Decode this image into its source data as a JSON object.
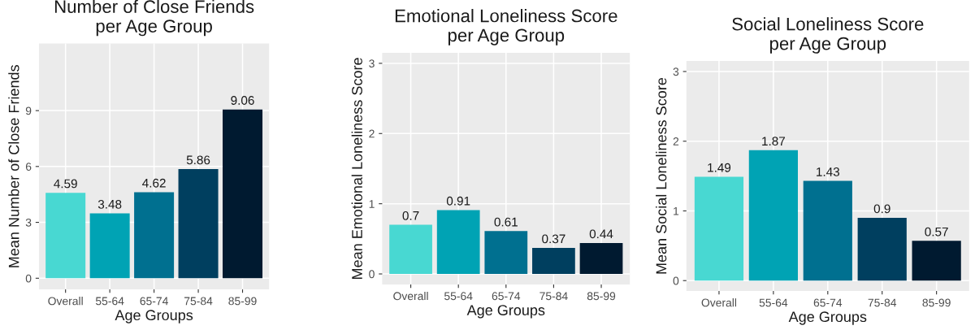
{
  "chart_data": [
    {
      "type": "bar",
      "title": "Number of Close Friends\nper Age Group",
      "xlabel": "Age Groups",
      "ylabel": "Mean Number of Close Friends",
      "categories": [
        "Overall",
        "55-64",
        "65-74",
        "75-84",
        "85-99"
      ],
      "values": [
        4.59,
        3.48,
        4.62,
        5.86,
        9.06
      ],
      "colors": [
        "#48d8d2",
        "#00a3b4",
        "#007090",
        "#003f5f",
        "#001a30"
      ],
      "ylim": [
        -0.6,
        12.6
      ],
      "yticks": [
        0,
        3,
        6,
        9
      ],
      "grid": true,
      "data_labels": true
    },
    {
      "type": "bar",
      "title": "Emotional Loneliness Score\nper Age Group",
      "xlabel": "Age Groups",
      "ylabel": "Mean Emotional Loneliness Score",
      "categories": [
        "Overall",
        "55-64",
        "65-74",
        "75-84",
        "85-99"
      ],
      "values": [
        0.7,
        0.91,
        0.61,
        0.37,
        0.44
      ],
      "colors": [
        "#48d8d2",
        "#00a3b4",
        "#007090",
        "#003f5f",
        "#001a30"
      ],
      "ylim": [
        -0.15,
        3.15
      ],
      "yticks": [
        0,
        1,
        2,
        3
      ],
      "grid": true,
      "data_labels": true
    },
    {
      "type": "bar",
      "title": "Social Loneliness Score\nper Age Group",
      "xlabel": "Age Groups",
      "ylabel": "Mean Social Loneliness Score",
      "categories": [
        "Overall",
        "55-64",
        "65-74",
        "75-84",
        "85-99"
      ],
      "values": [
        1.49,
        1.87,
        1.43,
        0.9,
        0.57
      ],
      "colors": [
        "#48d8d2",
        "#00a3b4",
        "#007090",
        "#003f5f",
        "#001a30"
      ],
      "ylim": [
        -0.15,
        3.15
      ],
      "yticks": [
        0,
        1,
        2,
        3
      ],
      "grid": true,
      "data_labels": true
    }
  ]
}
